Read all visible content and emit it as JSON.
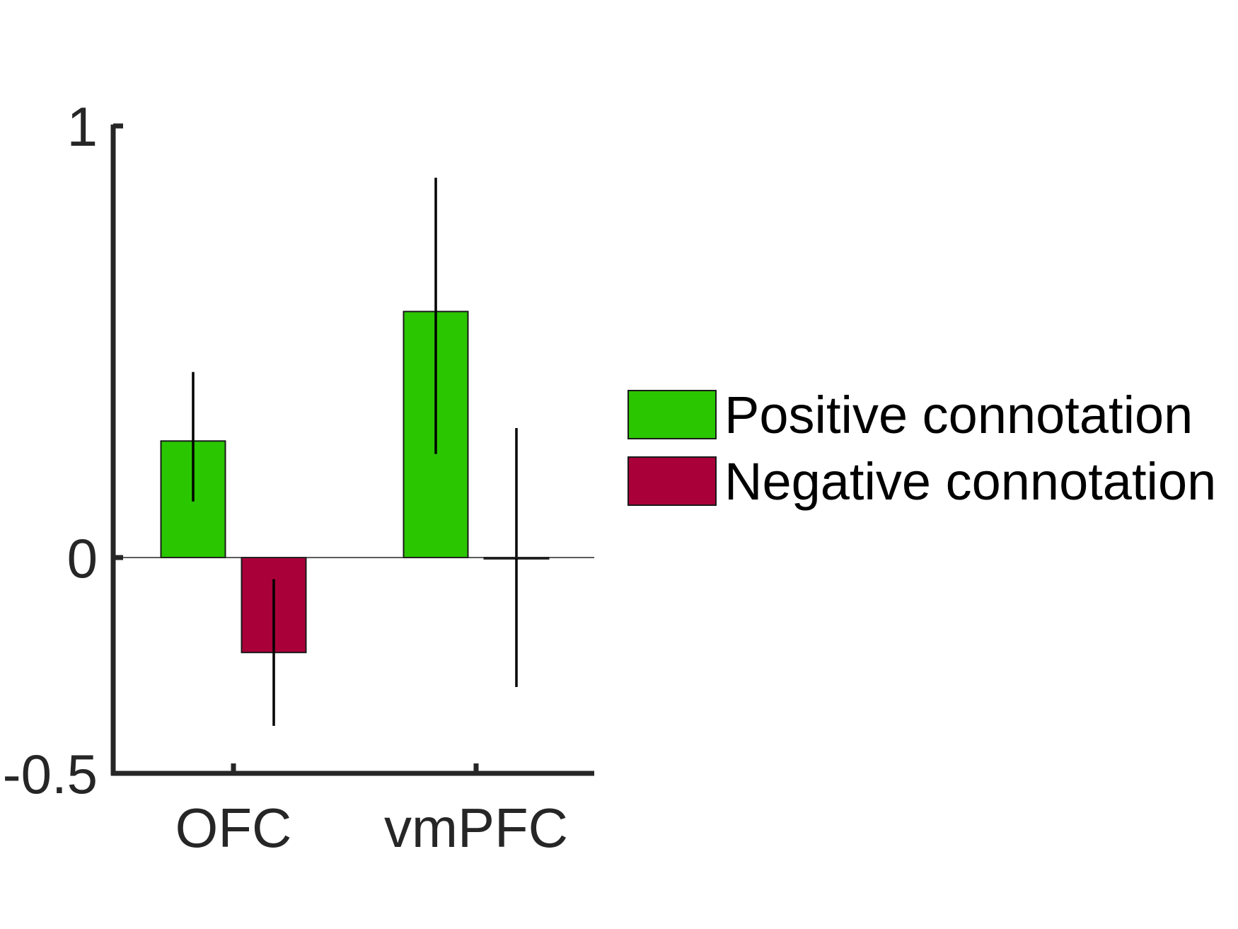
{
  "chart_data": {
    "type": "bar",
    "title": "",
    "xlabel": "",
    "ylabel": "",
    "categories": [
      "OFC",
      "vmPFC"
    ],
    "series": [
      {
        "name": "Positive connotation",
        "color": "#2AC600",
        "values": [
          0.27,
          0.57
        ],
        "err_low": [
          0.13,
          0.24
        ],
        "err_high": [
          0.43,
          0.88
        ]
      },
      {
        "name": "Negative connotation",
        "color": "#AA0039",
        "values": [
          -0.22,
          -0.003
        ],
        "err_low": [
          -0.39,
          -0.3
        ],
        "err_high": [
          -0.05,
          0.3
        ]
      }
    ],
    "ylim": [
      -0.5,
      1
    ],
    "yticks": [
      "1",
      "0",
      "-0.5"
    ],
    "ytick_values": [
      1,
      0,
      -0.5
    ],
    "legend_position": "right",
    "grid": false
  }
}
